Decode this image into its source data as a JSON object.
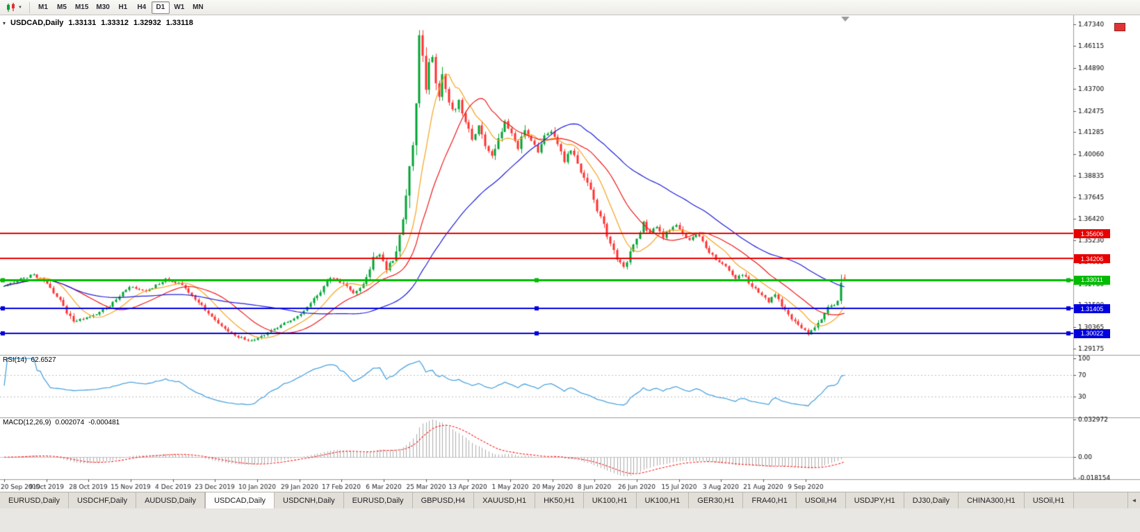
{
  "icons": {
    "collapse_caret": "▾",
    "dropdown_arrow": "▼",
    "tab_scroll": "◄"
  },
  "toolbar": {
    "timeframes": [
      "M1",
      "M5",
      "M15",
      "M30",
      "H1",
      "H4",
      "D1",
      "W1",
      "MN"
    ],
    "active": "D1"
  },
  "chart": {
    "symbol_label": "USDCAD,Daily",
    "open": "1.33131",
    "high": "1.33312",
    "low": "1.32932",
    "close": "1.33118"
  },
  "chart_data": {
    "type": "candlestick",
    "symbol": "USDCAD",
    "timeframe": "Daily",
    "candles": 256,
    "wiggle": 0.0017,
    "last_candle": {
      "o": 1.33131,
      "h": 1.33312,
      "l": 1.32932,
      "c": 1.33118
    },
    "price_range": {
      "max": 1.476,
      "min": 1.29
    },
    "price_axis": [
      1.4734,
      1.46115,
      1.4489,
      1.437,
      1.42475,
      1.41285,
      1.4006,
      1.38835,
      1.37645,
      1.3642,
      1.3523,
      1.34005,
      1.3278,
      1.3159,
      1.30365,
      1.29175
    ],
    "date_ticks": [
      "20 Sep 2019",
      "9 Oct 2019",
      "28 Oct 2019",
      "15 Nov 2019",
      "4 Dec 2019",
      "23 Dec 2019",
      "10 Jan 2020",
      "29 Jan 2020",
      "17 Feb 2020",
      "6 Mar 2020",
      "25 Mar 2020",
      "13 Apr 2020",
      "1 May 2020",
      "20 May 2020",
      "8 Jun 2020",
      "26 Jun 2020",
      "15 Jul 2020",
      "3 Aug 2020",
      "21 Aug 2020",
      "9 Sep 2020"
    ],
    "hlines": [
      {
        "price": 1.35606,
        "label": "1.35606",
        "color": "#e60000",
        "width": 2,
        "handles": false
      },
      {
        "price": 1.34206,
        "label": "1.34206",
        "color": "#e60000",
        "width": 2,
        "handles": false
      },
      {
        "price": 1.33011,
        "label": "1.33011",
        "color": "#00bb00",
        "width": 3,
        "handles": true
      },
      {
        "price": 1.31405,
        "label": "1.31405",
        "color": "#0000dd",
        "width": 2,
        "handles": true
      },
      {
        "price": 1.30022,
        "label": "1.30022",
        "color": "#0000dd",
        "width": 2,
        "handles": true
      }
    ],
    "ma": [
      {
        "period": 10,
        "color": "#f7a21b"
      },
      {
        "period": 21,
        "color": "#f01616"
      },
      {
        "period": 50,
        "color": "#1b1bdc"
      }
    ],
    "colors": {
      "up": "#00a432",
      "down": "#ff3030",
      "rsi": "#4aa3df",
      "macd_hist": "#ababab",
      "macd_signal": "#ff2020"
    },
    "price_path": [
      [
        0,
        1.3265
      ],
      [
        4,
        1.33
      ],
      [
        9,
        1.333
      ],
      [
        13,
        1.328
      ],
      [
        17,
        1.318
      ],
      [
        21,
        1.3065
      ],
      [
        26,
        1.3095
      ],
      [
        31,
        1.314
      ],
      [
        38,
        1.326
      ],
      [
        43,
        1.3235
      ],
      [
        49,
        1.3305
      ],
      [
        53,
        1.3285
      ],
      [
        58,
        1.3195
      ],
      [
        63,
        1.3095
      ],
      [
        68,
        1.301
      ],
      [
        73,
        1.2965
      ],
      [
        76,
        1.2958
      ],
      [
        80,
        1.3005
      ],
      [
        85,
        1.3055
      ],
      [
        90,
        1.3105
      ],
      [
        93,
        1.3165
      ],
      [
        96,
        1.3235
      ],
      [
        99,
        1.332
      ],
      [
        102,
        1.329
      ],
      [
        106,
        1.3225
      ],
      [
        109,
        1.3275
      ],
      [
        112,
        1.342
      ],
      [
        114,
        1.3445
      ],
      [
        116,
        1.336
      ],
      [
        118,
        1.3415
      ],
      [
        120,
        1.3555
      ],
      [
        122,
        1.3755
      ],
      [
        124,
        1.405
      ],
      [
        125,
        1.428
      ],
      [
        126,
        1.46
      ],
      [
        127,
        1.453
      ],
      [
        128,
        1.44
      ],
      [
        129,
        1.45
      ],
      [
        130,
        1.4545
      ],
      [
        131,
        1.438
      ],
      [
        132,
        1.431
      ],
      [
        133,
        1.4415
      ],
      [
        134,
        1.4365
      ],
      [
        136,
        1.424
      ],
      [
        138,
        1.43
      ],
      [
        140,
        1.418
      ],
      [
        142,
        1.409
      ],
      [
        144,
        1.416
      ],
      [
        146,
        1.406
      ],
      [
        148,
        1.3995
      ],
      [
        150,
        1.409
      ],
      [
        152,
        1.4175
      ],
      [
        154,
        1.411
      ],
      [
        156,
        1.404
      ],
      [
        158,
        1.415
      ],
      [
        160,
        1.409
      ],
      [
        162,
        1.402
      ],
      [
        164,
        1.41
      ],
      [
        166,
        1.4135
      ],
      [
        168,
        1.4045
      ],
      [
        170,
        1.3965
      ],
      [
        172,
        1.403
      ],
      [
        174,
        1.3935
      ],
      [
        176,
        1.388
      ],
      [
        178,
        1.379
      ],
      [
        180,
        1.369
      ],
      [
        182,
        1.36
      ],
      [
        184,
        1.3505
      ],
      [
        186,
        1.342
      ],
      [
        188,
        1.337
      ],
      [
        190,
        1.345
      ],
      [
        192,
        1.3545
      ],
      [
        194,
        1.3615
      ],
      [
        196,
        1.356
      ],
      [
        198,
        1.36
      ],
      [
        200,
        1.3545
      ],
      [
        202,
        1.358
      ],
      [
        204,
        1.3615
      ],
      [
        206,
        1.3555
      ],
      [
        208,
        1.352
      ],
      [
        210,
        1.356
      ],
      [
        212,
        1.3505
      ],
      [
        214,
        1.3455
      ],
      [
        216,
        1.3415
      ],
      [
        218,
        1.339
      ],
      [
        220,
        1.335
      ],
      [
        222,
        1.33
      ],
      [
        224,
        1.3335
      ],
      [
        226,
        1.329
      ],
      [
        228,
        1.3245
      ],
      [
        230,
        1.3215
      ],
      [
        232,
        1.3175
      ],
      [
        234,
        1.3225
      ],
      [
        236,
        1.316
      ],
      [
        238,
        1.311
      ],
      [
        240,
        1.3065
      ],
      [
        242,
        1.303
      ],
      [
        244,
        1.2998
      ],
      [
        246,
        1.3035
      ],
      [
        248,
        1.309
      ],
      [
        250,
        1.314
      ],
      [
        252,
        1.3165
      ],
      [
        253,
        1.318
      ],
      [
        254,
        1.329
      ],
      [
        255,
        1.3312
      ]
    ],
    "rsi": {
      "label": "RSI(14)",
      "value": "62.6527",
      "period": 14,
      "levels": [
        100,
        70,
        30
      ],
      "dashed_levels": [
        70,
        30
      ],
      "range": [
        -8,
        105
      ]
    },
    "macd": {
      "label": "MACD(12,26,9)",
      "value_main": "0.002074",
      "value_signal": "-0.000481",
      "range": [
        -0.0195,
        0.0345
      ],
      "axis": [
        {
          "v": 0.032972,
          "label": "0.032972"
        },
        {
          "v": 0,
          "label": "0.00"
        },
        {
          "v": -0.018154,
          "label": "-0.018154"
        }
      ]
    }
  },
  "tabs": {
    "items": [
      "EURUSD,Daily",
      "USDCHF,Daily",
      "AUDUSD,Daily",
      "USDCAD,Daily",
      "USDCNH,Daily",
      "EURUSD,Daily",
      "GBPUSD,H4",
      "XAUUSD,H1",
      "HK50,H1",
      "UK100,H1",
      "UK100,H1",
      "GER30,H1",
      "FRA40,H1",
      "USOil,H4",
      "USDJPY,H1",
      "DJ30,Daily",
      "CHINA300,H1",
      "USOil,H1"
    ],
    "active_index": 3
  }
}
